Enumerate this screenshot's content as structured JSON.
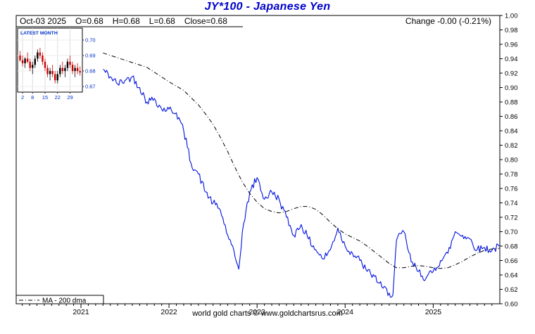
{
  "title": "JY*100  -  Japanese Yen",
  "header": {
    "date": "Oct-03 2025",
    "open": "O=0.68",
    "high": "H=0.68",
    "low": "L=0.68",
    "close": "Close=0.68",
    "change": "Change -0.00 (-0.21%)"
  },
  "legend": {
    "ma_label": "MA - 200 dma"
  },
  "footer": "world gold charts © www.goldchartsrus.com",
  "inset": {
    "label": "LATEST MONTH",
    "y_ticks": [
      "0.70",
      "0.69",
      "0.68",
      "0.67"
    ],
    "x_ticks": [
      "2",
      "8",
      "15",
      "22",
      "29"
    ],
    "candles": [
      [
        0.69,
        0.693,
        0.686,
        0.687
      ],
      [
        0.687,
        0.69,
        0.683,
        0.685
      ],
      [
        0.685,
        0.689,
        0.682,
        0.688
      ],
      [
        0.688,
        0.692,
        0.685,
        0.686
      ],
      [
        0.686,
        0.688,
        0.68,
        0.682
      ],
      [
        0.682,
        0.686,
        0.678,
        0.684
      ],
      [
        0.684,
        0.69,
        0.682,
        0.688
      ],
      [
        0.688,
        0.694,
        0.686,
        0.692
      ],
      [
        0.692,
        0.695,
        0.688,
        0.69
      ],
      [
        0.69,
        0.692,
        0.684,
        0.686
      ],
      [
        0.686,
        0.688,
        0.68,
        0.682
      ],
      [
        0.682,
        0.684,
        0.676,
        0.678
      ],
      [
        0.678,
        0.682,
        0.674,
        0.68
      ],
      [
        0.68,
        0.684,
        0.676,
        0.678
      ],
      [
        0.678,
        0.68,
        0.672,
        0.674
      ],
      [
        0.674,
        0.68,
        0.672,
        0.678
      ],
      [
        0.678,
        0.684,
        0.676,
        0.682
      ],
      [
        0.682,
        0.686,
        0.678,
        0.68
      ],
      [
        0.68,
        0.684,
        0.676,
        0.682
      ],
      [
        0.682,
        0.688,
        0.68,
        0.686
      ],
      [
        0.686,
        0.69,
        0.682,
        0.684
      ],
      [
        0.684,
        0.686,
        0.678,
        0.68
      ],
      [
        0.68,
        0.684,
        0.676,
        0.682
      ],
      [
        0.682,
        0.685,
        0.678,
        0.68
      ],
      [
        0.68,
        0.683,
        0.677,
        0.679
      ]
    ]
  },
  "colors": {
    "title_blue": "#0000cc",
    "price_line": "#0011dd",
    "ma_line": "#000000",
    "inset_text": "#0033cc",
    "candle_up": "#000000",
    "candle_down": "#cc0000",
    "text": "#000000"
  },
  "chart_data": {
    "type": "line",
    "title": "JY*100 - Japanese Yen",
    "xlabel": "",
    "ylabel": "",
    "ylim": [
      0.6,
      1.0
    ],
    "y_tick_step": 0.02,
    "x_years": [
      2021,
      2022,
      2023,
      2024,
      2025
    ],
    "grid": false,
    "legend_position": "bottom-left",
    "series": [
      {
        "name": "JY*100 close",
        "x": [
          2021.25,
          2021.333,
          2021.417,
          2021.5,
          2021.583,
          2021.667,
          2021.75,
          2021.833,
          2021.917,
          2022.0,
          2022.083,
          2022.167,
          2022.25,
          2022.333,
          2022.417,
          2022.5,
          2022.583,
          2022.667,
          2022.75,
          2022.792,
          2022.833,
          2022.917,
          2023.0,
          2023.083,
          2023.167,
          2023.25,
          2023.333,
          2023.417,
          2023.5,
          2023.583,
          2023.667,
          2023.75,
          2023.833,
          2023.917,
          2024.0,
          2024.083,
          2024.167,
          2024.25,
          2024.333,
          2024.417,
          2024.5,
          2024.542,
          2024.583,
          2024.667,
          2024.75,
          2024.833,
          2024.917,
          2025.0,
          2025.083,
          2025.167,
          2025.25,
          2025.333,
          2025.417,
          2025.5,
          2025.583,
          2025.667,
          2025.75
        ],
        "values": [
          0.925,
          0.915,
          0.905,
          0.91,
          0.915,
          0.9,
          0.88,
          0.885,
          0.87,
          0.87,
          0.865,
          0.84,
          0.795,
          0.78,
          0.755,
          0.74,
          0.73,
          0.695,
          0.665,
          0.648,
          0.7,
          0.755,
          0.775,
          0.745,
          0.755,
          0.745,
          0.72,
          0.695,
          0.71,
          0.69,
          0.675,
          0.662,
          0.675,
          0.705,
          0.68,
          0.67,
          0.66,
          0.645,
          0.638,
          0.623,
          0.615,
          0.612,
          0.688,
          0.7,
          0.658,
          0.645,
          0.635,
          0.645,
          0.66,
          0.67,
          0.7,
          0.695,
          0.69,
          0.675,
          0.678,
          0.674,
          0.68
        ]
      },
      {
        "name": "MA - 200 dma",
        "x": [
          2021.25,
          2021.5,
          2021.75,
          2022.0,
          2022.167,
          2022.25,
          2022.333,
          2022.417,
          2022.5,
          2022.583,
          2022.667,
          2022.75,
          2022.833,
          2022.917,
          2023.0,
          2023.083,
          2023.167,
          2023.25,
          2023.333,
          2023.417,
          2023.5,
          2023.583,
          2023.667,
          2023.75,
          2023.833,
          2023.917,
          2024.0,
          2024.083,
          2024.167,
          2024.25,
          2024.333,
          2024.417,
          2024.5,
          2024.583,
          2024.667,
          2024.75,
          2024.833,
          2024.917,
          2025.0,
          2025.083,
          2025.167,
          2025.25,
          2025.333,
          2025.417,
          2025.5,
          2025.583,
          2025.667,
          2025.75
        ],
        "values": [
          0.948,
          0.938,
          0.928,
          0.908,
          0.896,
          0.886,
          0.876,
          0.863,
          0.849,
          0.831,
          0.811,
          0.789,
          0.769,
          0.753,
          0.741,
          0.732,
          0.728,
          0.726,
          0.728,
          0.732,
          0.735,
          0.735,
          0.731,
          0.723,
          0.713,
          0.704,
          0.697,
          0.692,
          0.687,
          0.68,
          0.672,
          0.664,
          0.656,
          0.65,
          0.65,
          0.652,
          0.653,
          0.652,
          0.65,
          0.649,
          0.65,
          0.654,
          0.659,
          0.665,
          0.67,
          0.674,
          0.676,
          0.677
        ]
      }
    ]
  }
}
